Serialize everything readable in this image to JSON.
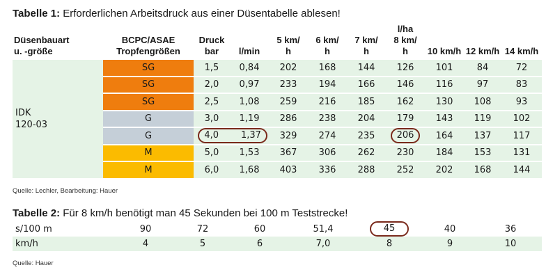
{
  "table1": {
    "title_bold": "Tabelle 1:",
    "title_text": " Erforderlichen Arbeitsdruck aus einer Düsentabelle ablesen!",
    "header_group": "l/ha",
    "headers": {
      "nozzle": [
        "Düsenbauart",
        "u. -größe"
      ],
      "bcpc": [
        "BCPC/ASAE",
        "Tropfengrößen"
      ],
      "druck": [
        "Druck",
        "bar"
      ],
      "lmin": "l/min",
      "speeds": [
        [
          "5 km/",
          "h"
        ],
        [
          "6 km/",
          "h"
        ],
        [
          "7 km/",
          "h"
        ],
        [
          "8 km/",
          "h"
        ],
        [
          "10 km/h",
          ""
        ],
        [
          "12 km/h",
          ""
        ],
        [
          "14 km/h",
          ""
        ]
      ]
    },
    "nozzle_label": [
      "IDK",
      "120-03"
    ],
    "rows": [
      {
        "drop": "SG",
        "color": "#ef7d0e",
        "bar": "1,5",
        "lmin": "0,84",
        "v": [
          "202",
          "168",
          "144",
          "126",
          "101",
          "84",
          "72"
        ]
      },
      {
        "drop": "SG",
        "color": "#ef7d0e",
        "bar": "2,0",
        "lmin": "0,97",
        "v": [
          "233",
          "194",
          "166",
          "146",
          "116",
          "97",
          "83"
        ]
      },
      {
        "drop": "SG",
        "color": "#ef7d0e",
        "bar": "2,5",
        "lmin": "1,08",
        "v": [
          "259",
          "216",
          "185",
          "162",
          "130",
          "108",
          "93"
        ]
      },
      {
        "drop": "G",
        "color": "#c5cfd8",
        "bar": "3,0",
        "lmin": "1,19",
        "v": [
          "286",
          "238",
          "204",
          "179",
          "143",
          "119",
          "102"
        ]
      },
      {
        "drop": "G",
        "color": "#c5cfd8",
        "bar": "4,0",
        "lmin": "1,37",
        "v": [
          "329",
          "274",
          "235",
          "206",
          "164",
          "137",
          "117"
        ]
      },
      {
        "drop": "M",
        "color": "#fbbb00",
        "bar": "5,0",
        "lmin": "1,53",
        "v": [
          "367",
          "306",
          "262",
          "230",
          "184",
          "153",
          "131"
        ]
      },
      {
        "drop": "M",
        "color": "#fbbb00",
        "bar": "6,0",
        "lmin": "1,68",
        "v": [
          "403",
          "336",
          "288",
          "252",
          "202",
          "168",
          "144"
        ]
      }
    ],
    "source": "Quelle: Lechler, Bearbeitung: Hauer"
  },
  "table2": {
    "title_bold": "Tabelle 2:",
    "title_text": " Für 8 km/h benötigt man 45 Sekunden bei 100 m Teststrecke!",
    "row1": {
      "label": "s/100 m",
      "values": [
        "90",
        "72",
        "60",
        "51,4",
        "45",
        "40",
        "36"
      ]
    },
    "row2": {
      "label": "km/h",
      "values": [
        "4",
        "5",
        "6",
        "7,0",
        "8",
        "9",
        "10"
      ]
    },
    "source": "Quelle: Hauer"
  }
}
